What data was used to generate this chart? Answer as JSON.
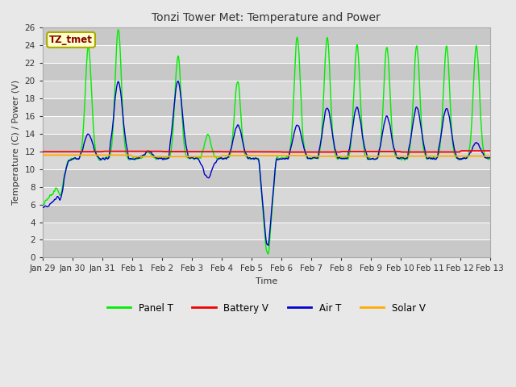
{
  "title": "Tonzi Tower Met: Temperature and Power",
  "xlabel": "Time",
  "ylabel": "Temperature (C) / Power (V)",
  "ylim": [
    0,
    26
  ],
  "yticks": [
    0,
    2,
    4,
    6,
    8,
    10,
    12,
    14,
    16,
    18,
    20,
    22,
    24,
    26
  ],
  "bg_light": "#d8d8d8",
  "bg_dark": "#c8c8c8",
  "grid_color": "#ffffff",
  "outer_bg": "#e8e8e8",
  "label_box_text": "TZ_tmet",
  "label_box_facecolor": "#ffffcc",
  "label_box_edgecolor": "#aaaa00",
  "label_box_textcolor": "#880000",
  "panel_t_color": "#00ee00",
  "battery_v_color": "#ee0000",
  "air_t_color": "#0000cc",
  "solar_v_color": "#ffaa00",
  "panel_t_label": "Panel T",
  "battery_v_label": "Battery V",
  "air_t_label": "Air T",
  "solar_v_label": "Solar V",
  "x_tick_labels": [
    "Jan 29",
    "Jan 30",
    "Jan 31",
    "Feb 1",
    "Feb 2",
    "Feb 3",
    "Feb 4",
    "Feb 5",
    "Feb 6",
    "Feb 7",
    "Feb 8",
    "Feb 9",
    "Feb 10",
    "Feb 11",
    "Feb 12",
    "Feb 13"
  ],
  "n_days": 15,
  "figsize": [
    6.4,
    4.8
  ],
  "dpi": 100
}
